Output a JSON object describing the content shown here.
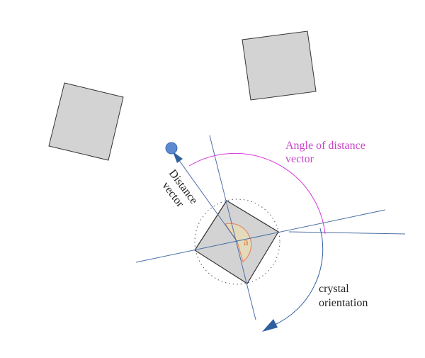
{
  "labels": {
    "angle_of_distance_vector_line1": "Angle of distance",
    "angle_of_distance_vector_line2": "vector",
    "distance_vector_line1": "Distance",
    "distance_vector_line2": "vector",
    "crystal_orientation_line1": "crystal",
    "crystal_orientation_line2": "orientation",
    "angle_symbol": "a"
  },
  "colors": {
    "crystal_fill": "#d3d3d3",
    "crystal_stroke": "#333333",
    "axis_line": "#4a6fa5",
    "angle_arc": "#d83ad8",
    "angle_label": "#c845c8",
    "arrow_fill": "#2f5f9e",
    "neighbor_dot": "#5b8ad0",
    "wedge_fill": "#eadcb4",
    "wedge_stroke": "#e08a6a",
    "angle_symbol": "#e07a30"
  }
}
